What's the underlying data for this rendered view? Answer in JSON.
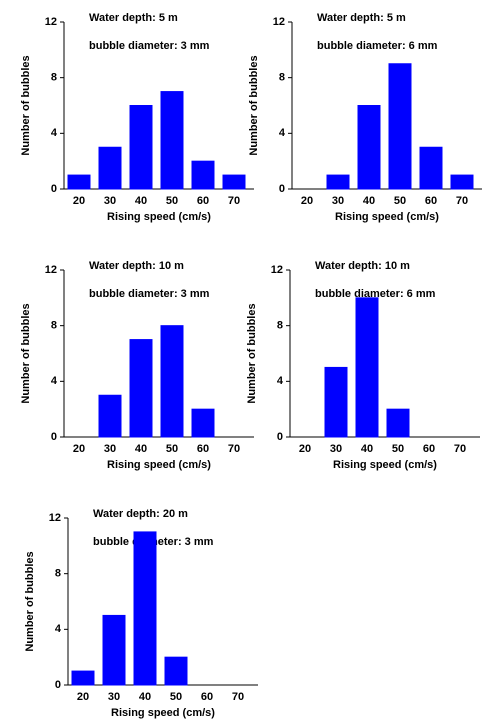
{
  "chart_data": [
    {
      "type": "bar",
      "title": "Water depth: 5 m",
      "subtitle": "bubble diameter: 3 mm",
      "x_label": "Rising speed (cm/s)",
      "y_label": "Number of bubbles",
      "categories": [
        "20",
        "30",
        "40",
        "50",
        "60",
        "70"
      ],
      "values": [
        1,
        3,
        6,
        7,
        2,
        1
      ],
      "color": "#0000ff",
      "ylim": [
        0,
        12
      ],
      "yticks": [
        0,
        4,
        8,
        12
      ]
    },
    {
      "type": "bar",
      "title": "Water depth: 5 m",
      "subtitle": "bubble diameter: 6 mm",
      "x_label": "Rising speed (cm/s)",
      "y_label": "Number of bubbles",
      "categories": [
        "20",
        "30",
        "40",
        "50",
        "60",
        "70"
      ],
      "values": [
        0,
        1,
        6,
        9,
        3,
        1
      ],
      "color": "#0000ff",
      "ylim": [
        0,
        12
      ],
      "yticks": [
        0,
        4,
        8,
        12
      ]
    },
    {
      "type": "bar",
      "title": "Water depth: 10 m",
      "subtitle": "bubble diameter: 3 mm",
      "x_label": "Rising speed (cm/s)",
      "y_label": "Number of bubbles",
      "categories": [
        "20",
        "30",
        "40",
        "50",
        "60",
        "70"
      ],
      "values": [
        0,
        3,
        7,
        8,
        2,
        0
      ],
      "color": "#0000ff",
      "ylim": [
        0,
        12
      ],
      "yticks": [
        0,
        4,
        8,
        12
      ]
    },
    {
      "type": "bar",
      "title": "Water depth: 10 m",
      "subtitle": "bubble diameter: 6 mm",
      "x_label": "Rising speed (cm/s)",
      "y_label": "Number of bubbles",
      "categories": [
        "20",
        "30",
        "40",
        "50",
        "60",
        "70"
      ],
      "values": [
        0,
        5,
        10,
        2,
        0,
        0
      ],
      "color": "#0000ff",
      "ylim": [
        0,
        12
      ],
      "yticks": [
        0,
        4,
        8,
        12
      ]
    },
    {
      "type": "bar",
      "title": "Water depth: 20 m",
      "subtitle": "bubble diameter: 3 mm",
      "x_label": "Rising speed (cm/s)",
      "y_label": "Number of bubbles",
      "categories": [
        "20",
        "30",
        "40",
        "50",
        "60",
        "70"
      ],
      "values": [
        1,
        5,
        11,
        2,
        0,
        0
      ],
      "color": "#0000ff",
      "ylim": [
        0,
        12
      ],
      "yticks": [
        0,
        4,
        8,
        12
      ]
    }
  ]
}
